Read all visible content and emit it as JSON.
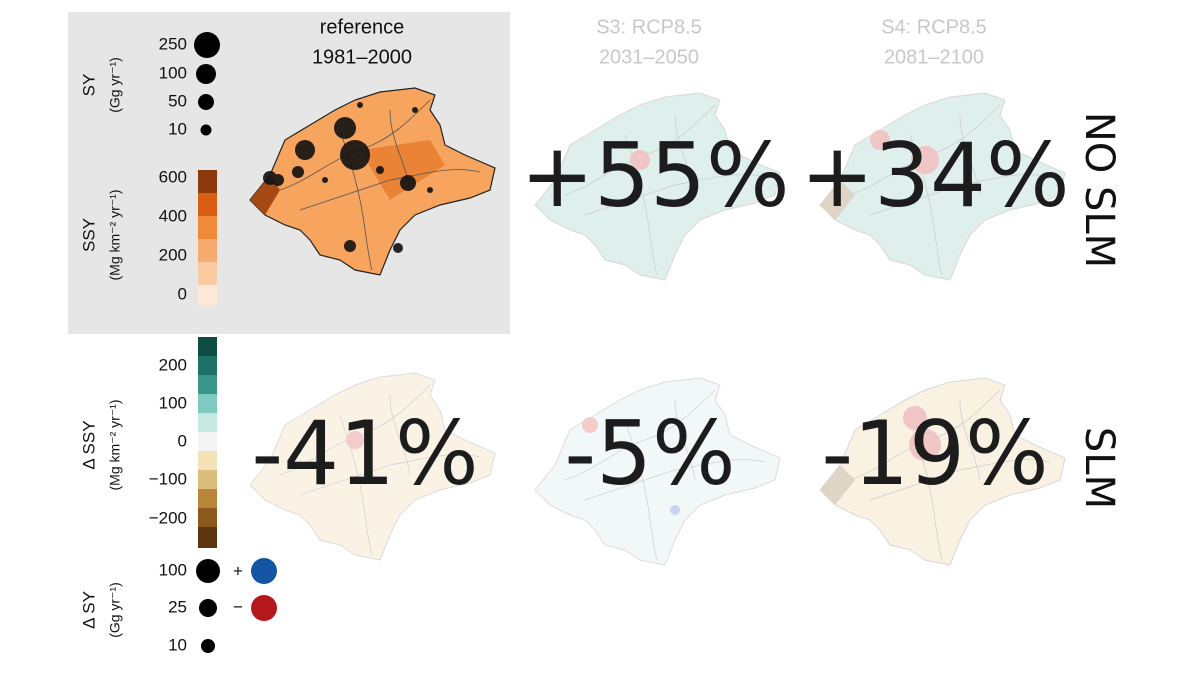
{
  "columns": [
    {
      "title": "reference",
      "period": "1981–2000"
    },
    {
      "title": "S3: RCP8.5",
      "period": "2031–2050"
    },
    {
      "title": "S4: RCP8.5",
      "period": "2081–2100"
    }
  ],
  "rows": [
    {
      "label": "NO SLM",
      "changes": [
        "+55%",
        "+34%"
      ]
    },
    {
      "label": "SLM",
      "changes": [
        "-41%",
        "-5%",
        "-19%"
      ]
    }
  ],
  "legends": {
    "sy": {
      "title": "SY",
      "unit": "(Gg yr⁻¹)",
      "labels": [
        "250",
        "100",
        "50",
        "10"
      ]
    },
    "ssy": {
      "title": "SSY",
      "unit": "(Mg km⁻² yr⁻¹)",
      "labels": [
        "600",
        "400",
        "200",
        "0"
      ]
    },
    "delta_ssy": {
      "title": "Δ SSY",
      "unit": "(Mg km⁻² yr⁻¹)",
      "labels": [
        "200",
        "100",
        "0",
        "−100",
        "−200"
      ]
    },
    "delta_sy": {
      "title": "Δ SY",
      "unit": "(Gg yr⁻¹)",
      "labels": [
        "100",
        "25",
        "10"
      ],
      "signs": [
        "+",
        "−"
      ]
    }
  }
}
